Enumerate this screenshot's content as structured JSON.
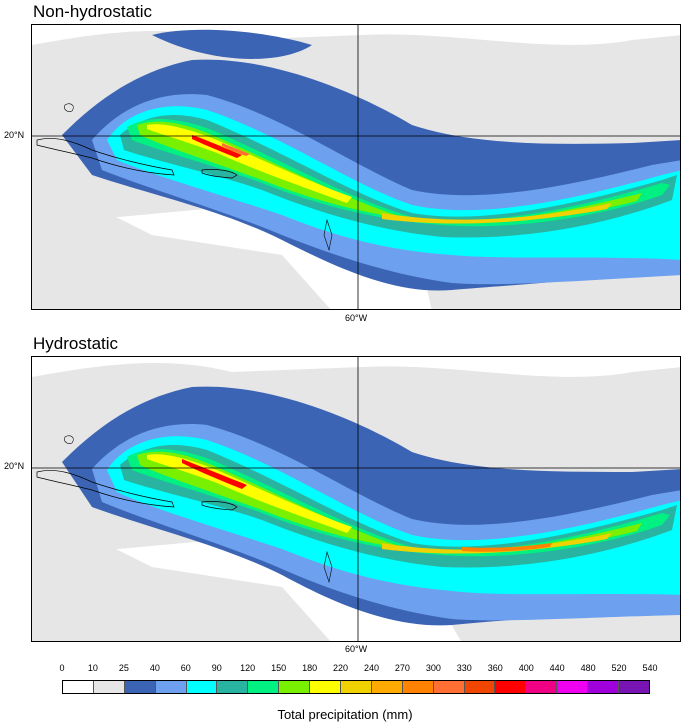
{
  "panels": [
    {
      "title": "Non-hydrostatic",
      "lat_label": "20°N",
      "lon_label": "60°W"
    },
    {
      "title": "Hydrostatic",
      "lat_label": "20°N",
      "lon_label": "60°W"
    }
  ],
  "colorbar": {
    "ticks": [
      "0",
      "10",
      "25",
      "40",
      "60",
      "90",
      "120",
      "150",
      "180",
      "220",
      "240",
      "270",
      "300",
      "330",
      "360",
      "400",
      "440",
      "480",
      "520",
      "540"
    ],
    "colors": [
      "#ffffff",
      "#e6e6e6",
      "#3c64b4",
      "#6ea0f0",
      "#00ffff",
      "#28b4a0",
      "#00f082",
      "#78f000",
      "#ffff00",
      "#f0d200",
      "#ffaa00",
      "#ff8200",
      "#ff6e32",
      "#f04600",
      "#ff0000",
      "#f00082",
      "#f000f0",
      "#a000dc",
      "#7814b4"
    ],
    "title": "Total precipitation (mm)"
  }
}
